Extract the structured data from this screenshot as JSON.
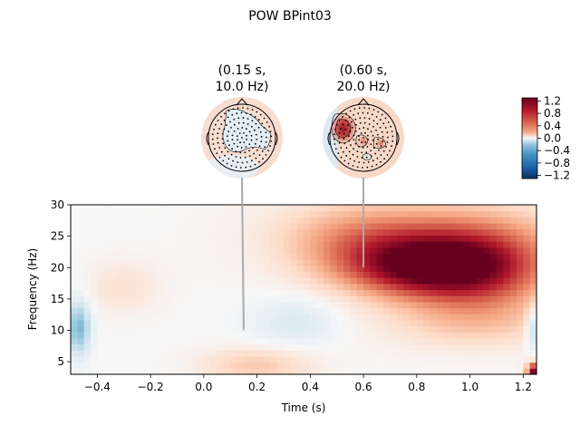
{
  "title": "POW BPint03",
  "topomaps": [
    {
      "label_line1": "(0.15 s,",
      "label_line2": "10.0 Hz)",
      "time": 0.15,
      "freq": 10.0
    },
    {
      "label_line1": "(0.60 s,",
      "label_line2": "20.0 Hz)",
      "time": 0.6,
      "freq": 20.0
    }
  ],
  "colorbar": {
    "ticks": [
      "1.2",
      "0.8",
      "0.4",
      "0.0",
      "−0.4",
      "−0.8",
      "−1.2"
    ],
    "vmin": -1.3,
    "vmax": 1.3,
    "colormap": "RdBu_r"
  },
  "chart_data": {
    "type": "heatmap",
    "title": "POW BPint03",
    "xlabel": "Time (s)",
    "ylabel": "Frequency (Hz)",
    "xlim": [
      -0.5,
      1.25
    ],
    "ylim": [
      3,
      30
    ],
    "xticks": [
      "−0.4",
      "−0.2",
      "0.0",
      "0.2",
      "0.4",
      "0.6",
      "0.8",
      "1.0",
      "1.2"
    ],
    "xtick_values": [
      -0.4,
      -0.2,
      0.0,
      0.2,
      0.4,
      0.6,
      0.8,
      1.0,
      1.2
    ],
    "yticks": [
      "30",
      "25",
      "20",
      "15",
      "10",
      "5"
    ],
    "ytick_values": [
      30,
      25,
      20,
      15,
      10,
      5
    ],
    "regions": [
      {
        "t": 0.8,
        "f": 20.0,
        "amp": 0.95,
        "st": 0.22,
        "sf": 3.5
      },
      {
        "t": 1.05,
        "f": 19.5,
        "amp": 0.7,
        "st": 0.2,
        "sf": 5.0
      },
      {
        "t": 0.85,
        "f": 25.0,
        "amp": 0.45,
        "st": 0.35,
        "sf": 4.5
      },
      {
        "t": 0.55,
        "f": 25.0,
        "amp": 0.25,
        "st": 0.2,
        "sf": 4.0
      },
      {
        "t": 0.2,
        "f": 4.5,
        "amp": 0.35,
        "st": 0.15,
        "sf": 2.0
      },
      {
        "t": 1.0,
        "f": 11.0,
        "amp": 0.25,
        "st": 0.25,
        "sf": 3.0
      },
      {
        "t": 0.35,
        "f": 11.5,
        "amp": -0.2,
        "st": 0.12,
        "sf": 3.0
      },
      {
        "t": -0.47,
        "f": 10.5,
        "amp": -0.6,
        "st": 0.03,
        "sf": 3.0
      },
      {
        "t": 1.24,
        "f": 10.5,
        "amp": -0.45,
        "st": 0.02,
        "sf": 2.5
      },
      {
        "t": 1.24,
        "f": 3.5,
        "amp": 1.2,
        "st": 0.02,
        "sf": 1.0
      },
      {
        "t": -0.3,
        "f": 17.0,
        "amp": 0.2,
        "st": 0.1,
        "sf": 3.0
      }
    ]
  }
}
